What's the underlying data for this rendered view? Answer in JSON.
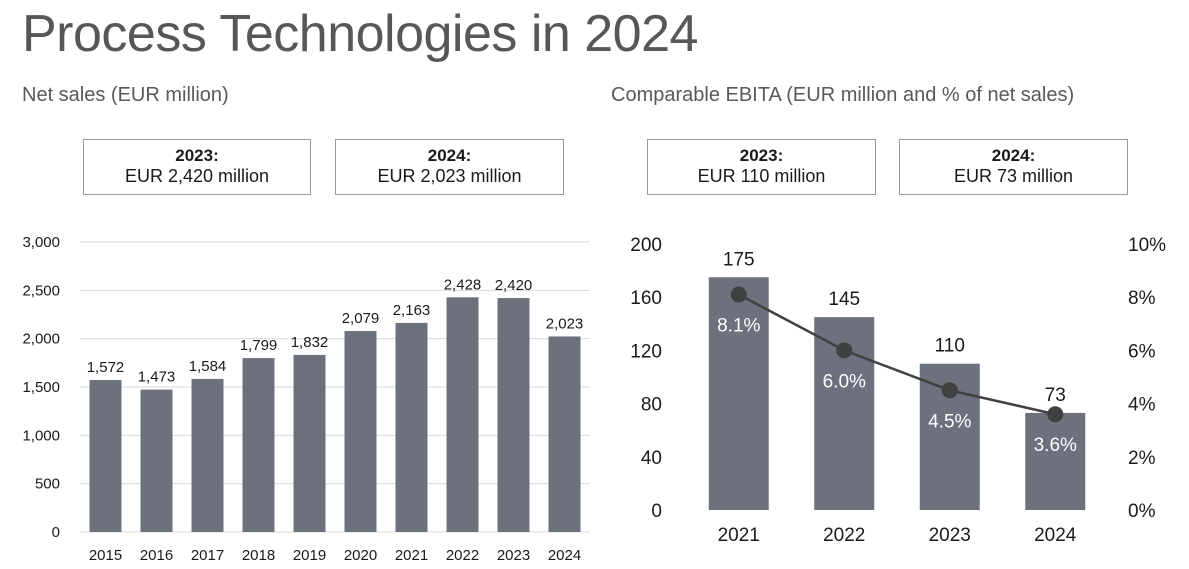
{
  "page_title": "Process Technologies in 2024",
  "colors": {
    "bar": "#6c717d",
    "line": "#404040",
    "text": "#1a1a1a"
  },
  "chart_data": [
    {
      "type": "bar",
      "title": "Net sales (EUR million)",
      "callouts": [
        {
          "year": "2023:",
          "value": "EUR 2,420 million"
        },
        {
          "year": "2024:",
          "value": "EUR 2,023 million"
        }
      ],
      "categories": [
        "2015",
        "2016",
        "2017",
        "2018",
        "2019",
        "2020",
        "2021",
        "2022",
        "2023",
        "2024"
      ],
      "values": [
        1572,
        1473,
        1584,
        1799,
        1832,
        2079,
        2163,
        2428,
        2420,
        2023
      ],
      "labels": [
        "1,572",
        "1,473",
        "1,584",
        "1,799",
        "1,832",
        "2,079",
        "2,163",
        "2,428",
        "2,420",
        "2,023"
      ],
      "ylim": [
        0,
        3000
      ],
      "yticks": [
        "0",
        "500",
        "1,000",
        "1,500",
        "2,000",
        "2,500",
        "3,000"
      ],
      "grid": true
    },
    {
      "type": "bar",
      "title": "Comparable EBITA (EUR million and % of net sales)",
      "callouts": [
        {
          "year": "2023:",
          "value": "EUR 110 million"
        },
        {
          "year": "2024:",
          "value": "EUR 73 million"
        }
      ],
      "categories": [
        "2021",
        "2022",
        "2023",
        "2024"
      ],
      "values": [
        175,
        145,
        110,
        73
      ],
      "labels": [
        "175",
        "145",
        "110",
        "73"
      ],
      "ylim": [
        0,
        200
      ],
      "yticks": [
        "0",
        "40",
        "80",
        "120",
        "160",
        "200"
      ],
      "line_series": {
        "values": [
          8.1,
          6.0,
          4.5,
          3.6
        ],
        "labels": [
          "8.1%",
          "6.0%",
          "4.5%",
          "3.6%"
        ]
      },
      "y2lim": [
        0,
        10
      ],
      "y2ticks": [
        "0%",
        "2%",
        "4%",
        "6%",
        "8%",
        "10%"
      ]
    }
  ]
}
